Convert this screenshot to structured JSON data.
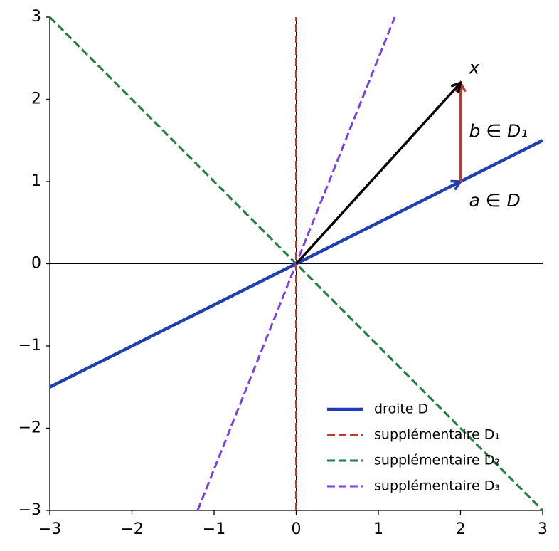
{
  "chart_data": {
    "type": "line",
    "series": [
      {
        "name": "droite D",
        "color": "#1f3fb4",
        "linestyle": "solid",
        "x": [
          -3,
          3
        ],
        "values": [
          -1.5,
          1.5
        ]
      },
      {
        "name": "supplémentaire D₁",
        "color": "#c0392b",
        "linestyle": "dashed",
        "x": [
          0,
          0
        ],
        "values": [
          -3,
          3
        ]
      },
      {
        "name": "supplémentaire D₂",
        "color": "#1e7e40",
        "linestyle": "dashed",
        "x": [
          -3,
          3
        ],
        "values": [
          3,
          -3
        ]
      },
      {
        "name": "supplémentaire D₃",
        "color": "#7b3fe4",
        "linestyle": "dashed",
        "x": [
          -1.2,
          1.2
        ],
        "values": [
          -3,
          3
        ]
      }
    ],
    "vectors": [
      {
        "label": "a ∈ D",
        "color": "#1f3fb4",
        "x": [
          0,
          2
        ],
        "values": [
          0,
          1
        ]
      },
      {
        "label": "b ∈ D₁",
        "color": "#c0392b",
        "x": [
          2,
          2
        ],
        "values": [
          1,
          2.2
        ]
      },
      {
        "label": "x",
        "color": "#000000",
        "x": [
          0,
          2
        ],
        "values": [
          0,
          2.2
        ]
      }
    ],
    "xlim": [
      -3,
      3
    ],
    "ylim": [
      -3,
      3
    ],
    "xticks": [
      {
        "value": -3,
        "label": "−3"
      },
      {
        "value": -2,
        "label": "−2"
      },
      {
        "value": -1,
        "label": "−1"
      },
      0,
      1,
      2,
      3
    ],
    "yticks": [
      {
        "value": -3,
        "label": "−3"
      },
      {
        "value": -2,
        "label": "−2"
      },
      {
        "value": -1,
        "label": "−1"
      },
      0,
      1,
      2,
      3
    ],
    "zero_lines": true,
    "legend": "lower right"
  }
}
